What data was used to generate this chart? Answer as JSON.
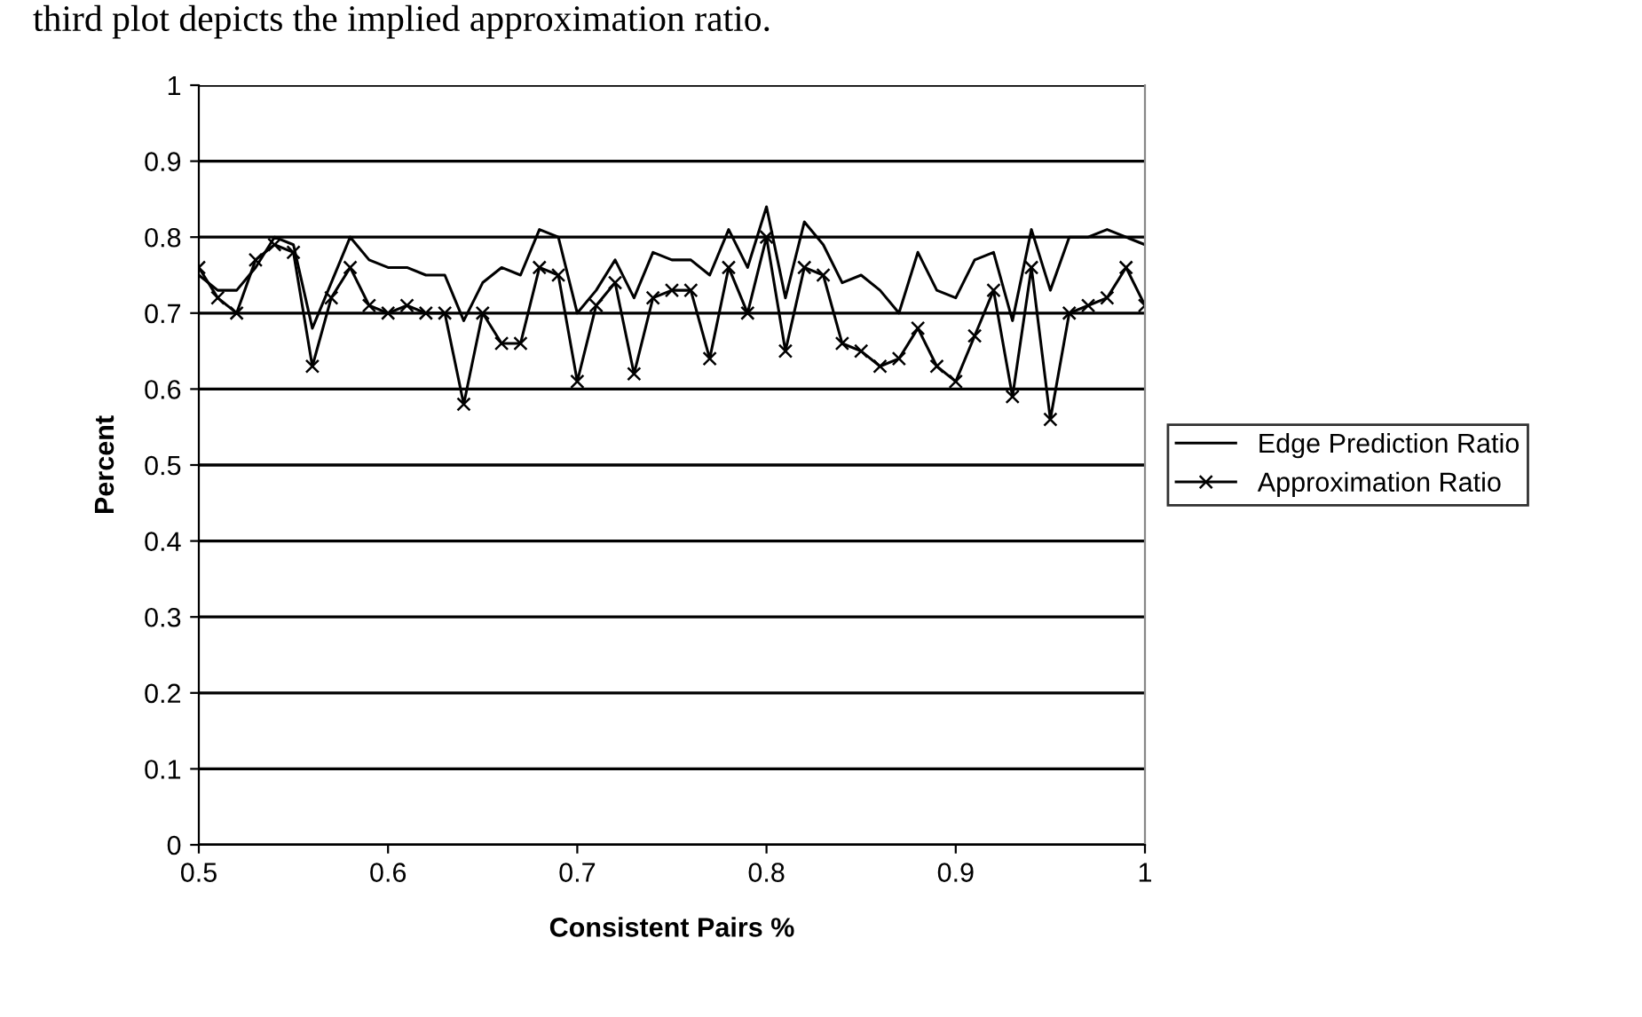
{
  "chart_data": {
    "type": "line",
    "xlabel": "Consistent Pairs %",
    "ylabel": "Percent",
    "annotations": [
      "third plot depicts the implied approximation ratio."
    ],
    "x": [
      0.5,
      0.51,
      0.52,
      0.53,
      0.54,
      0.55,
      0.56,
      0.57,
      0.58,
      0.59,
      0.6,
      0.61,
      0.62,
      0.63,
      0.64,
      0.65,
      0.66,
      0.67,
      0.68,
      0.69,
      0.7,
      0.71,
      0.72,
      0.73,
      0.74,
      0.75,
      0.76,
      0.77,
      0.78,
      0.79,
      0.8,
      0.81,
      0.82,
      0.83,
      0.84,
      0.85,
      0.86,
      0.87,
      0.88,
      0.89,
      0.9,
      0.91,
      0.92,
      0.93,
      0.94,
      0.95,
      0.96,
      0.97,
      0.98,
      0.99,
      1.0
    ],
    "series": [
      {
        "name": "Edge Prediction Ratio",
        "color": "#000000",
        "marker": "none",
        "values": [
          0.75,
          0.73,
          0.73,
          0.76,
          0.8,
          0.79,
          0.68,
          0.74,
          0.8,
          0.77,
          0.76,
          0.76,
          0.75,
          0.75,
          0.69,
          0.74,
          0.76,
          0.75,
          0.81,
          0.8,
          0.7,
          0.73,
          0.77,
          0.72,
          0.78,
          0.77,
          0.77,
          0.75,
          0.81,
          0.76,
          0.84,
          0.72,
          0.82,
          0.79,
          0.74,
          0.75,
          0.73,
          0.7,
          0.78,
          0.73,
          0.72,
          0.77,
          0.78,
          0.69,
          0.81,
          0.73,
          0.8,
          0.8,
          0.81,
          0.8,
          0.79
        ]
      },
      {
        "name": "Approximation Ratio",
        "color": "#000000",
        "marker": "cross",
        "values": [
          0.76,
          0.72,
          0.7,
          0.77,
          0.79,
          0.78,
          0.63,
          0.72,
          0.76,
          0.71,
          0.7,
          0.71,
          0.7,
          0.7,
          0.58,
          0.7,
          0.66,
          0.66,
          0.76,
          0.75,
          0.61,
          0.71,
          0.74,
          0.62,
          0.72,
          0.73,
          0.73,
          0.64,
          0.76,
          0.7,
          0.8,
          0.65,
          0.76,
          0.75,
          0.66,
          0.65,
          0.63,
          0.64,
          0.68,
          0.63,
          0.61,
          0.67,
          0.73,
          0.59,
          0.76,
          0.56,
          0.7,
          0.71,
          0.72,
          0.76,
          0.71
        ]
      }
    ],
    "xlim": [
      0.5,
      1
    ],
    "xticks": [
      0.5,
      0.6,
      0.7,
      0.8,
      0.9,
      1
    ],
    "ylim": [
      0,
      1
    ],
    "yticks": [
      0,
      0.1,
      0.2,
      0.3,
      0.4,
      0.5,
      0.6,
      0.7,
      0.8,
      0.9,
      1
    ],
    "grid": "y",
    "legend": "right",
    "line_style": "solid"
  }
}
